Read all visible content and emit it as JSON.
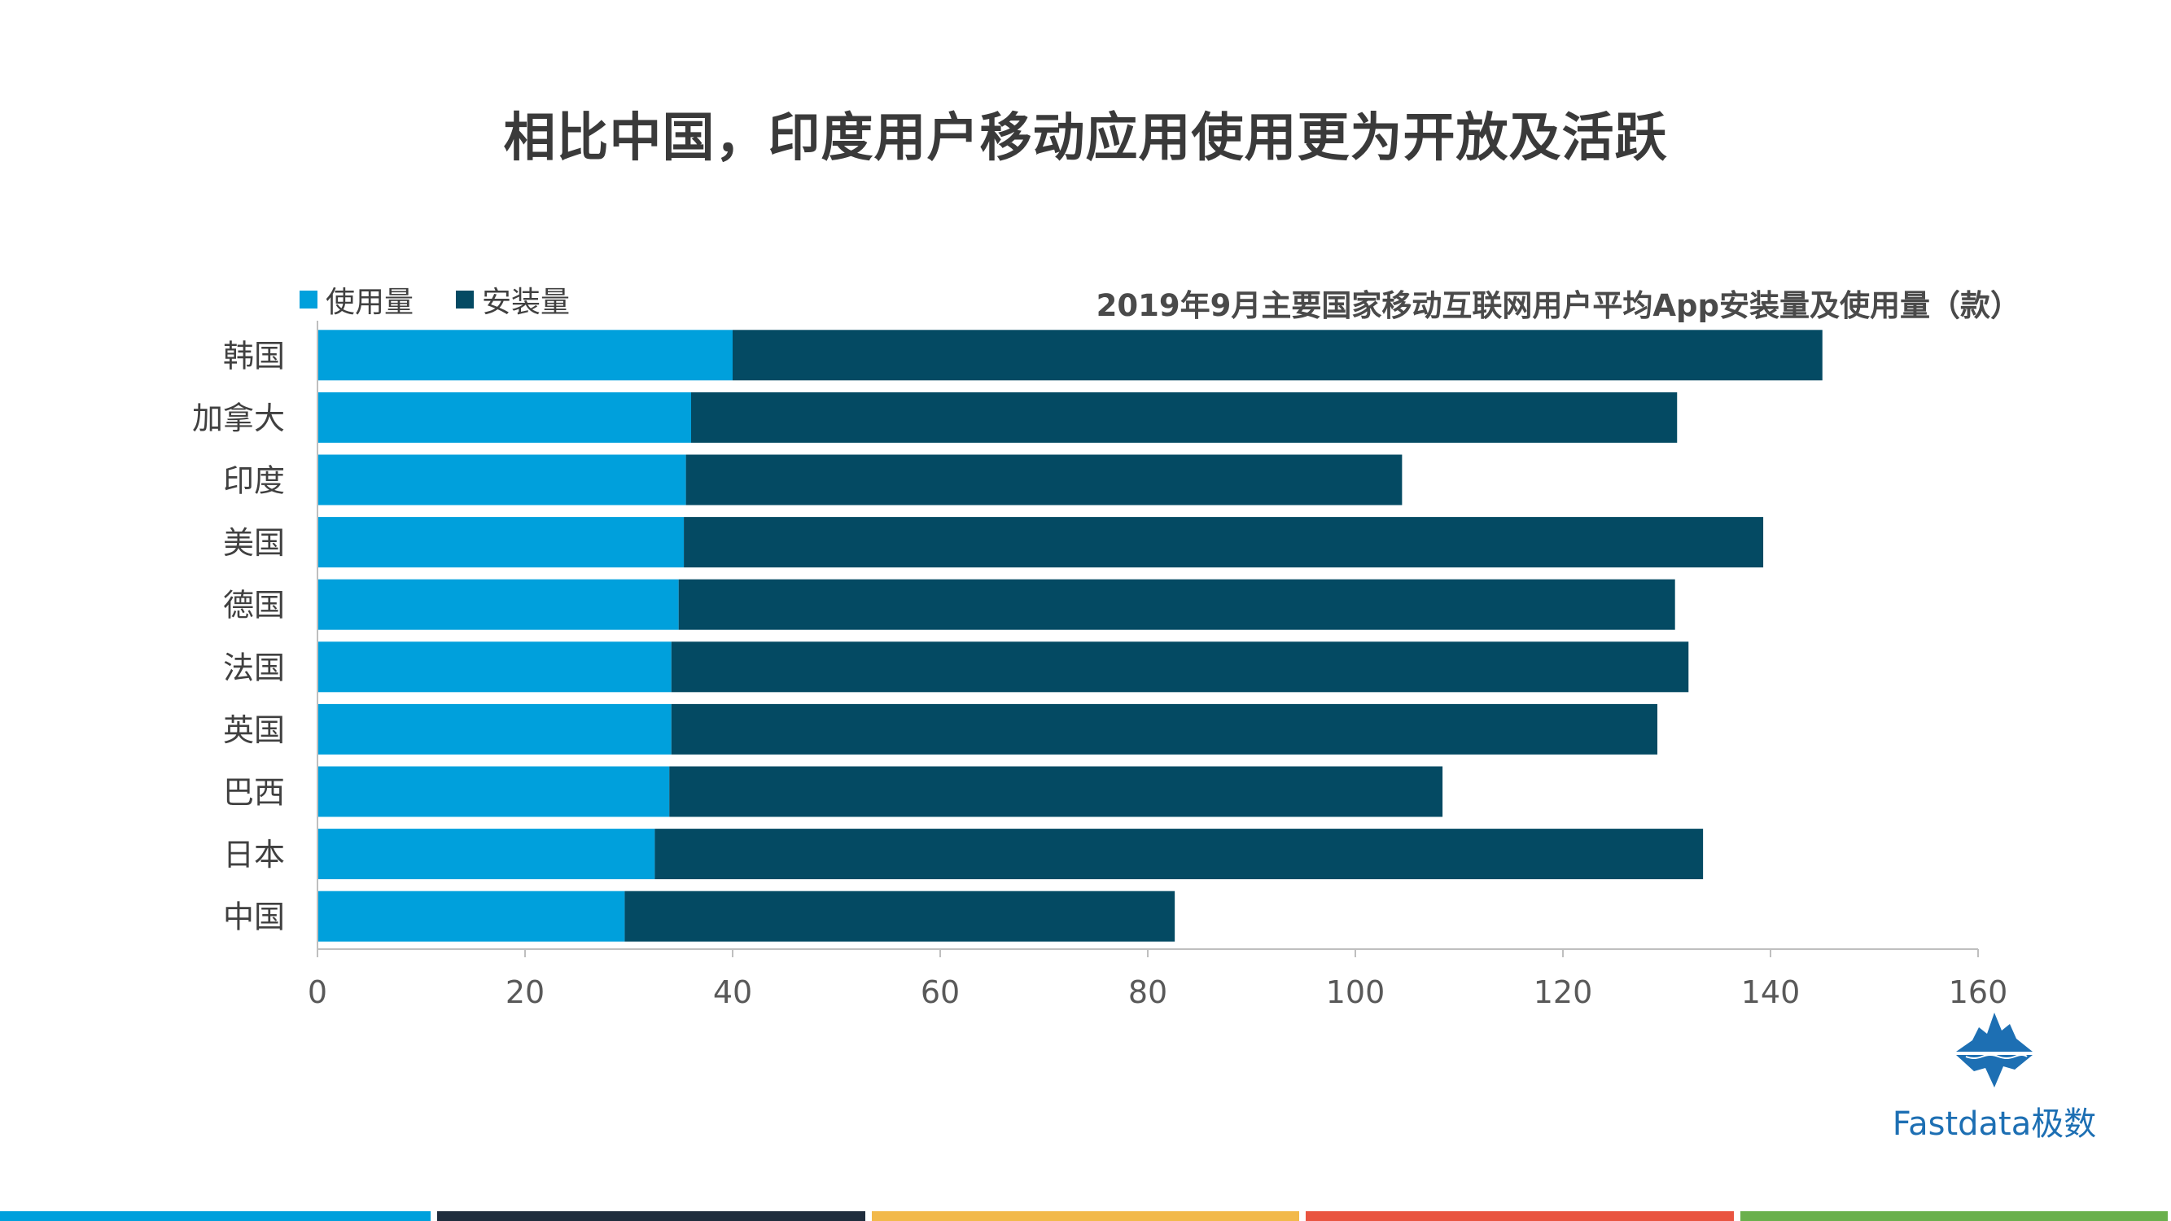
{
  "page": {
    "title": "相比中国，印度用户移动应用使用更为开放及活跃"
  },
  "brand": {
    "name": "Fastdata极数",
    "logo_icon": "iceberg-logo-icon"
  },
  "colors": {
    "usage": "#00a0dc",
    "install": "#044a63",
    "axis": "#bfbfbf",
    "footer": [
      "#00a0dc",
      "#1f2d3d",
      "#f2b94a",
      "#e95440",
      "#6ab04c"
    ]
  },
  "chart_data": {
    "type": "bar",
    "orientation": "horizontal",
    "stacked": true,
    "title": "2019年9月主要国家移动互联网用户平均App安装量及使用量（款）",
    "categories": [
      "韩国",
      "加拿大",
      "印度",
      "美国",
      "德国",
      "法国",
      "英国",
      "巴西",
      "日本",
      "中国"
    ],
    "series": [
      {
        "name": "使用量",
        "values": [
          40,
          36,
          35.5,
          35.3,
          34.8,
          34.1,
          34.1,
          33.9,
          32.5,
          29.6
        ]
      },
      {
        "name": "安装量",
        "values": [
          105,
          95,
          69,
          104,
          96,
          98,
          95,
          74.5,
          101,
          53
        ]
      }
    ],
    "xlim": [
      0,
      160
    ],
    "xticks": [
      "0",
      "20",
      "40",
      "60",
      "80",
      "100",
      "120",
      "140",
      "160"
    ],
    "legend": "top-left",
    "grid": false
  }
}
